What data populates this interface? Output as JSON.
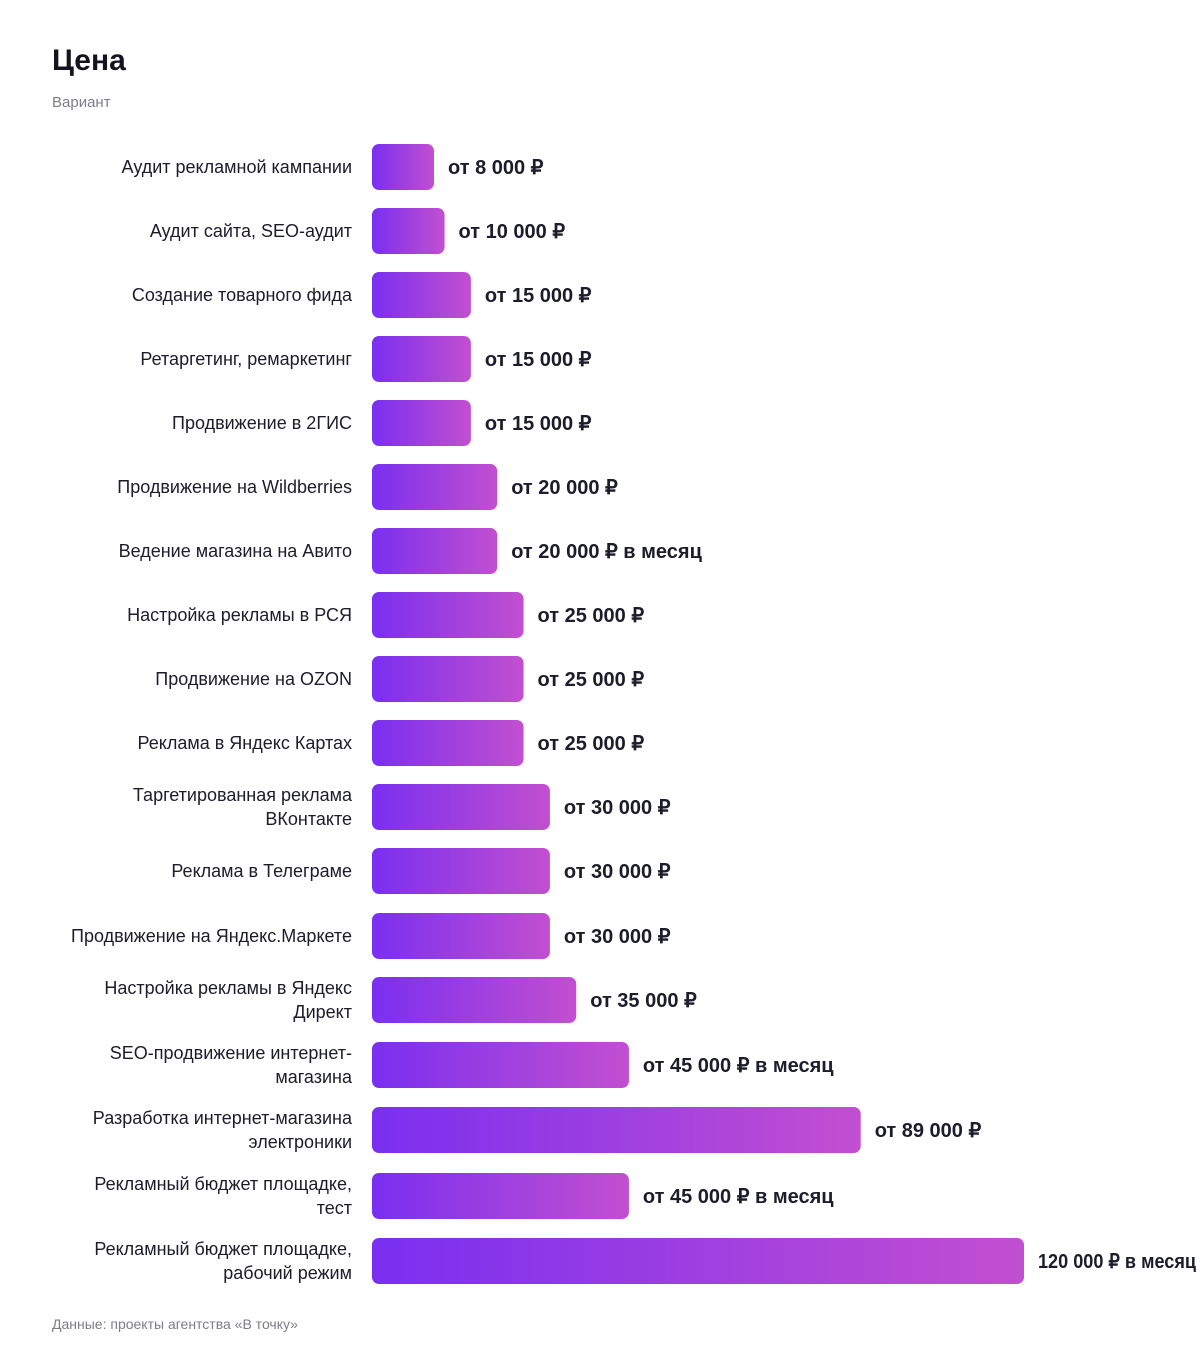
{
  "header": {
    "title": "Цена",
    "subtitle": "Вариант"
  },
  "footer": {
    "source": "Данные: проекты агентства «В точку»"
  },
  "colors": {
    "bar_start": "#7a2ff0",
    "bar_end": "#c24fd0",
    "text": "#1c1c2b",
    "muted": "#7d7d8a"
  },
  "chart_data": {
    "type": "bar",
    "orientation": "horizontal",
    "title": "Цена",
    "subtitle": "Вариант",
    "categories": [
      "Аудит рекламной кампании",
      "Аудит сайта, SEO-аудит",
      "Создание товарного фида",
      "Ретаргетинг, ремаркетинг",
      "Продвижение в 2ГИС",
      "Продвижение на Wildberries",
      "Ведение магазина на Авито",
      "Настройка рекламы в РСЯ",
      "Продвижение на OZON",
      "Реклама в Яндекс Картах",
      "Таргетированная реклама ВКонтакте",
      "Реклама в Телеграме",
      "Продвижение на Яндекс.Маркете",
      "Настройка рекламы в Яндекс Директ",
      "SEO-продвижение интернет-магазина",
      "Разработка интернет-магазина электроники",
      "Рекламный бюджет площадке, тест",
      "Рекламный бюджет площадке, рабочий режим"
    ],
    "label_lines": [
      [
        "Аудит рекламной кампании"
      ],
      [
        "Аудит сайта, SEO-аудит"
      ],
      [
        "Создание товарного фида"
      ],
      [
        "Ретаргетинг, ремаркетинг"
      ],
      [
        "Продвижение в 2ГИС"
      ],
      [
        "Продвижение на Wildberries"
      ],
      [
        "Ведение магазина на Авито"
      ],
      [
        "Настройка рекламы в РСЯ"
      ],
      [
        "Продвижение на OZON"
      ],
      [
        "Реклама в Яндекс Картах"
      ],
      [
        "Таргетированная реклама",
        "ВКонтакте"
      ],
      [
        "Реклама в Телеграме"
      ],
      [
        "Продвижение на Яндекс.Маркете"
      ],
      [
        "Настройка рекламы в Яндекс",
        "Директ"
      ],
      [
        "SEO-продвижение интернет-",
        "магазина"
      ],
      [
        "Разработка интернет-магазина",
        "электроники"
      ],
      [
        "Рекламный бюджет площадке,",
        "тест"
      ],
      [
        "Рекламный бюджет площадке,",
        "рабочий режим"
      ]
    ],
    "values": [
      8000,
      10000,
      15000,
      15000,
      15000,
      20000,
      20000,
      25000,
      25000,
      25000,
      30000,
      30000,
      30000,
      35000,
      45000,
      89000,
      45000,
      120000
    ],
    "value_labels": [
      "от 8 000 ₽",
      "от 10 000 ₽",
      "от 15 000 ₽",
      "от 15 000 ₽",
      "от 15 000 ₽",
      "от 20 000 ₽",
      "от 20 000 ₽ в месяц",
      "от 25 000 ₽",
      "от 25 000 ₽",
      "от 25 000 ₽",
      "от 30 000 ₽",
      "от 30 000 ₽",
      "от 30 000 ₽",
      "от 35 000 ₽",
      "от 45 000 ₽ в месяц",
      "от 89 000 ₽",
      "от 45 000 ₽ в месяц",
      "120 000 ₽ в месяц"
    ],
    "xlim": [
      0,
      120000
    ],
    "grid": false,
    "legend": "none"
  }
}
